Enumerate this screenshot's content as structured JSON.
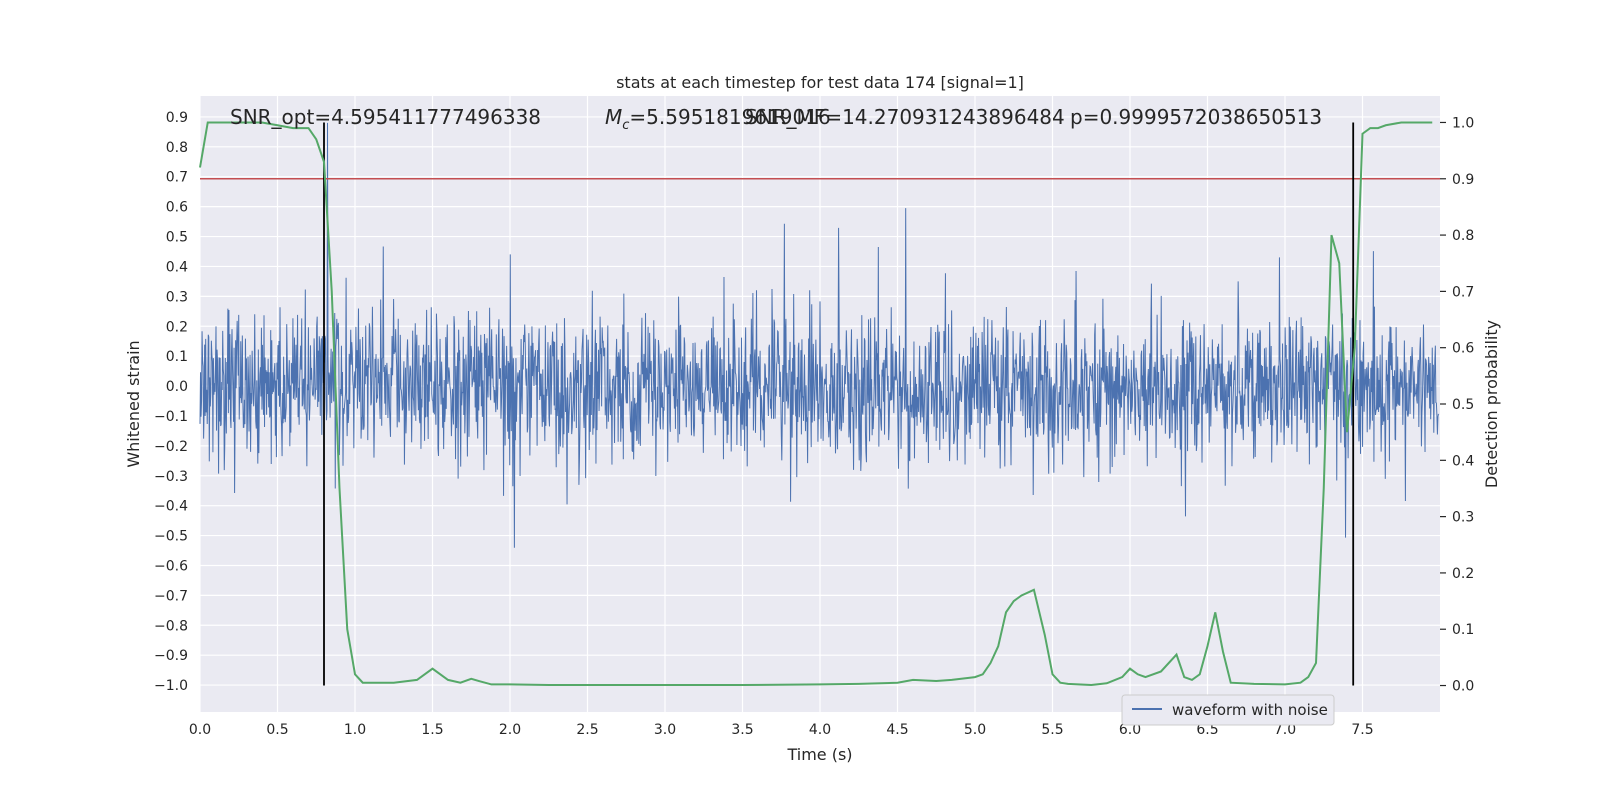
{
  "chart_data": {
    "type": "line",
    "title": "stats at each timestep for test data 174 [signal=1]",
    "xlabel": "Time (s)",
    "ylabel_left": "Whitened strain",
    "ylabel_right": "Detection probability",
    "xlim": [
      0.0,
      8.0
    ],
    "ylim_left": [
      -1.09,
      0.97
    ],
    "ylim_right": [
      -0.047,
      1.047
    ],
    "x_ticks": [
      "0.0",
      "0.5",
      "1.0",
      "1.5",
      "2.0",
      "2.5",
      "3.0",
      "3.5",
      "4.0",
      "4.5",
      "5.0",
      "5.5",
      "6.0",
      "6.5",
      "7.0",
      "7.5"
    ],
    "y_left_ticks": [
      "0.9",
      "0.8",
      "0.7",
      "0.6",
      "0.5",
      "0.4",
      "0.3",
      "0.2",
      "0.1",
      "0.0",
      "−0.1",
      "−0.2",
      "−0.3",
      "−0.4",
      "−0.5",
      "−0.6",
      "−0.7",
      "−0.8",
      "−0.9",
      "−1.0"
    ],
    "y_right_ticks": [
      "1.0",
      "0.9",
      "0.8",
      "0.7",
      "0.6",
      "0.5",
      "0.4",
      "0.3",
      "0.2",
      "0.1",
      "0.0"
    ],
    "grid": true,
    "legend_position": "lower-right",
    "annotations": {
      "snr_opt": "SNR_opt=4.595411777496338",
      "chirp_mass_symbol": "M",
      "chirp_mass_sub": "c",
      "chirp_mass_value": "=5.5951819619016",
      "snr_mf": "SNR_MF=14.270931243896484",
      "p_value": "p=0.9999572038650513"
    },
    "series": [
      {
        "name": "waveform with noise",
        "color": "#4c72b0",
        "kind": "noise_strain"
      },
      {
        "color": "#55a868",
        "axis": "right",
        "x": [
          0.0,
          0.05,
          0.1,
          0.2,
          0.3,
          0.4,
          0.5,
          0.6,
          0.7,
          0.75,
          0.8,
          0.85,
          0.9,
          0.95,
          1.0,
          1.05,
          1.1,
          1.25,
          1.4,
          1.5,
          1.6,
          1.68,
          1.75,
          1.8,
          1.88,
          2.0,
          2.25,
          2.5,
          3.0,
          3.5,
          4.0,
          4.25,
          4.5,
          4.6,
          4.75,
          4.85,
          5.0,
          5.05,
          5.1,
          5.15,
          5.2,
          5.25,
          5.3,
          5.38,
          5.45,
          5.5,
          5.55,
          5.6,
          5.75,
          5.85,
          5.95,
          6.0,
          6.05,
          6.1,
          6.2,
          6.3,
          6.35,
          6.4,
          6.45,
          6.5,
          6.55,
          6.6,
          6.65,
          6.8,
          7.0,
          7.1,
          7.15,
          7.2,
          7.25,
          7.3,
          7.35,
          7.4,
          7.45,
          7.5,
          7.55,
          7.6,
          7.65,
          7.75,
          7.85,
          7.9,
          7.95
        ],
        "y": [
          0.92,
          1.0,
          1.0,
          1.0,
          1.0,
          1.0,
          0.995,
          0.99,
          0.99,
          0.97,
          0.93,
          0.7,
          0.35,
          0.1,
          0.02,
          0.005,
          0.005,
          0.005,
          0.01,
          0.03,
          0.01,
          0.005,
          0.012,
          0.008,
          0.002,
          0.002,
          0.001,
          0.001,
          0.001,
          0.001,
          0.002,
          0.003,
          0.005,
          0.01,
          0.008,
          0.01,
          0.015,
          0.02,
          0.04,
          0.07,
          0.13,
          0.15,
          0.16,
          0.17,
          0.09,
          0.02,
          0.005,
          0.003,
          0.001,
          0.004,
          0.015,
          0.03,
          0.02,
          0.015,
          0.025,
          0.055,
          0.015,
          0.01,
          0.02,
          0.07,
          0.13,
          0.06,
          0.005,
          0.003,
          0.002,
          0.005,
          0.015,
          0.04,
          0.35,
          0.8,
          0.75,
          0.45,
          0.6,
          0.98,
          0.99,
          0.99,
          0.995,
          1.0,
          1.0,
          1.0,
          1.0
        ]
      }
    ],
    "threshold_line": {
      "value": 0.9,
      "color": "#c44e52"
    },
    "vertical_markers": [
      0.8,
      7.44
    ]
  }
}
